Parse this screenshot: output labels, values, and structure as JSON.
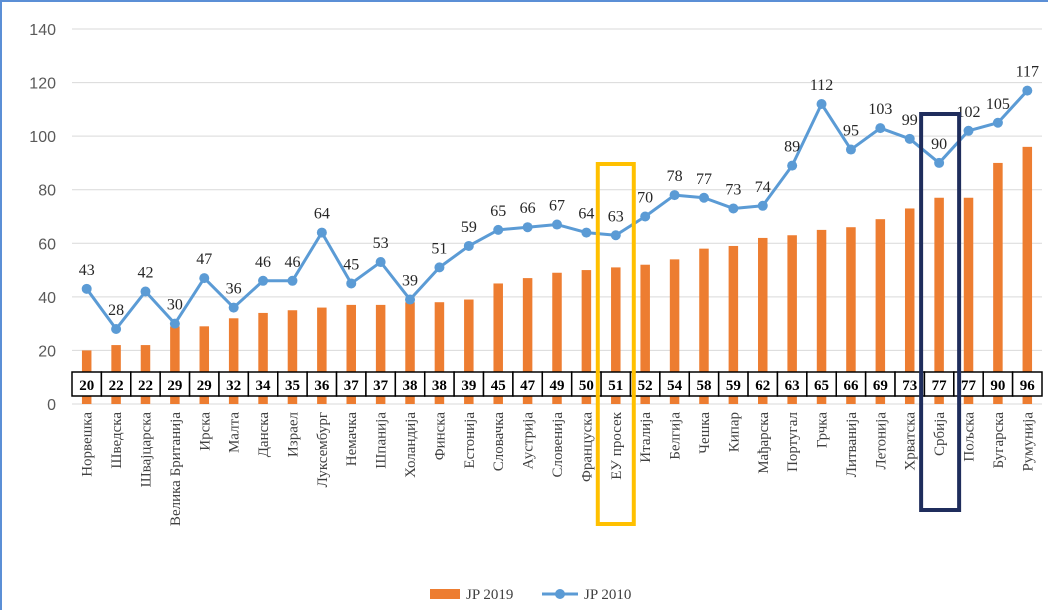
{
  "chart_data": {
    "type": "bar",
    "categories": [
      "Норвешка",
      "Шведска",
      "Швајцарска",
      "Велика Британија",
      "Ирска",
      "Малта",
      "Данска",
      "Израел",
      "Луксембург",
      "Немачка",
      "Шпанија",
      "Холандија",
      "Финска",
      "Естонија",
      "Словачка",
      "Аустрија",
      "Словенија",
      "Француска",
      "ЕУ просек",
      "Италија",
      "Белгија",
      "Чешка",
      "Кипар",
      "Мађарска",
      "Португал",
      "Грчка",
      "Литванија",
      "Летонија",
      "Хрватска",
      "Србија",
      "Пољска",
      "Бугарска",
      "Румунија"
    ],
    "series": [
      {
        "name": "JP 2019",
        "type": "bar",
        "color": "#ed7d31",
        "values": [
          20,
          22,
          22,
          29,
          29,
          32,
          34,
          35,
          36,
          37,
          37,
          38,
          38,
          39,
          45,
          47,
          49,
          50,
          51,
          52,
          54,
          58,
          59,
          62,
          63,
          65,
          66,
          69,
          73,
          77,
          77,
          90,
          96
        ]
      },
      {
        "name": "JP 2010",
        "type": "line",
        "color": "#5b9bd5",
        "values": [
          43,
          28,
          42,
          30,
          47,
          36,
          46,
          46,
          64,
          45,
          53,
          39,
          51,
          59,
          65,
          66,
          67,
          64,
          63,
          70,
          78,
          77,
          73,
          74,
          89,
          112,
          95,
          103,
          99,
          90,
          102,
          105,
          117
        ]
      }
    ],
    "yticks": [
      "0",
      "20",
      "40",
      "60",
      "80",
      "100",
      "120",
      "140"
    ],
    "ylim": [
      0,
      140
    ],
    "grid": true,
    "legend_position": "bottom",
    "highlights": [
      {
        "category": "ЕУ просек",
        "color": "#ffc000"
      },
      {
        "category": "Србија",
        "color": "#1f2d5c"
      }
    ]
  }
}
